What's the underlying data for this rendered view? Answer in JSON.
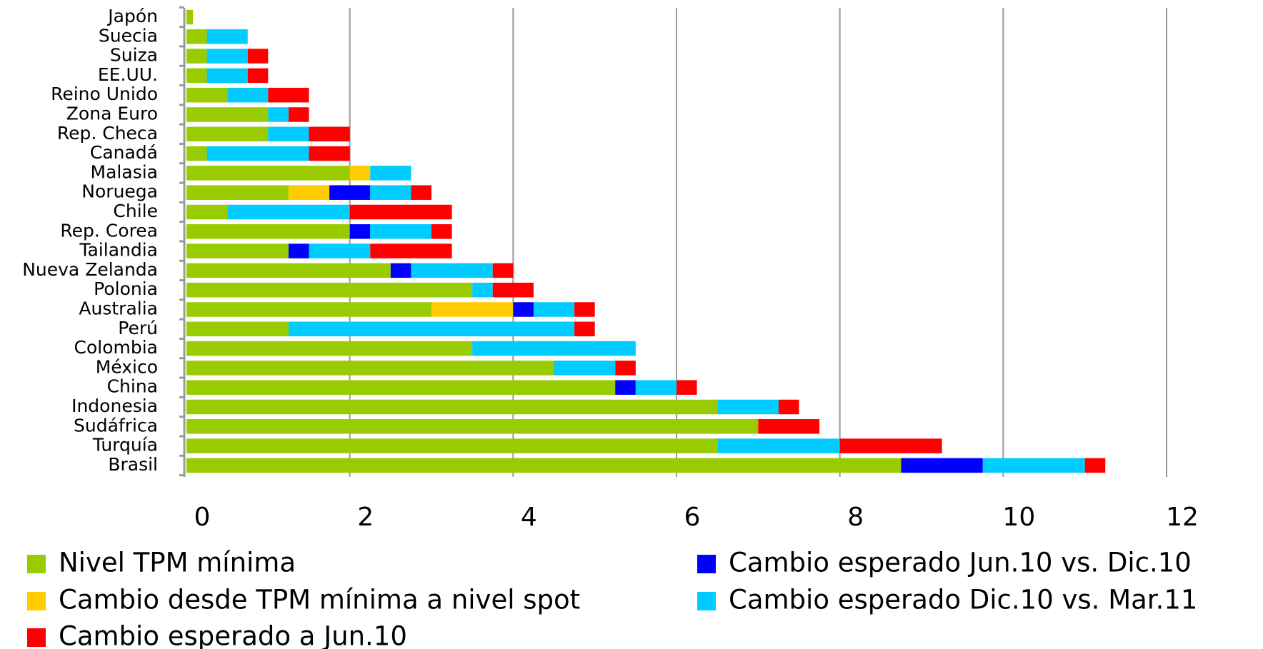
{
  "chart_data": {
    "type": "bar",
    "orientation": "horizontal",
    "stacked": true,
    "categories": [
      "Japón",
      "Suecia",
      "Suiza",
      "EE.UU.",
      "Reino Unido",
      "Zona Euro",
      "Rep. Checa",
      "Canadá",
      "Malasia",
      "Noruega",
      "Chile",
      "Rep. Corea",
      "Tailandia",
      "Nueva Zelanda",
      "Polonia",
      "Australia",
      "Perú",
      "Colombia",
      "México",
      "China",
      "Indonesia",
      "Sudáfrica",
      "Turquía",
      "Brasil"
    ],
    "series": [
      {
        "name": "Nivel TPM mínima",
        "color": "#99cc00",
        "values": [
          0.08,
          0.25,
          0.25,
          0.25,
          0.5,
          1.0,
          1.0,
          0.25,
          2.0,
          1.25,
          0.5,
          2.0,
          1.25,
          2.5,
          3.5,
          3.0,
          1.25,
          3.5,
          4.5,
          5.25,
          6.5,
          7.0,
          6.5,
          8.75
        ]
      },
      {
        "name": "Cambio desde TPM mínima a nivel spot",
        "color": "#ffcc00",
        "values": [
          null,
          null,
          null,
          null,
          null,
          null,
          null,
          null,
          0.25,
          0.5,
          null,
          null,
          null,
          null,
          null,
          1.0,
          null,
          null,
          null,
          null,
          null,
          null,
          null,
          null
        ]
      },
      {
        "name": "Cambio esperado Jun.10 vs. Dic.10",
        "color": "#0000ff",
        "values": [
          null,
          null,
          null,
          null,
          null,
          null,
          null,
          null,
          null,
          0.5,
          null,
          0.25,
          0.25,
          0.25,
          null,
          0.25,
          null,
          null,
          null,
          0.25,
          null,
          null,
          null,
          1.0
        ]
      },
      {
        "name": "Cambio esperado Dic.10 vs. Mar.11",
        "color": "#00ccff",
        "values": [
          null,
          0.5,
          0.5,
          0.5,
          0.5,
          0.25,
          0.5,
          1.25,
          0.5,
          0.5,
          1.5,
          0.75,
          0.75,
          1.0,
          0.25,
          0.5,
          3.5,
          2.0,
          0.75,
          0.5,
          0.75,
          null,
          1.5,
          1.25
        ]
      },
      {
        "name": "Cambio esperado a Jun.10",
        "color": "#ff0000",
        "values": [
          null,
          null,
          0.25,
          0.25,
          0.5,
          0.25,
          0.5,
          0.5,
          null,
          0.25,
          1.25,
          0.25,
          1.0,
          0.25,
          0.5,
          0.25,
          0.25,
          null,
          0.25,
          0.25,
          0.25,
          0.75,
          1.25,
          0.25
        ]
      }
    ],
    "xlim": [
      0,
      12
    ],
    "xticks": [
      0,
      2,
      4,
      6,
      8,
      10,
      12
    ],
    "grid": true
  }
}
